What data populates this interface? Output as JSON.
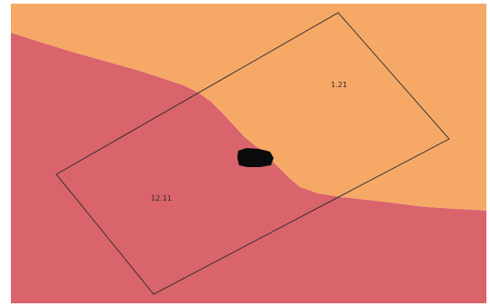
{
  "map": {
    "zones": [
      {
        "id": "zone-a",
        "label": "1.21",
        "color": "#f6a866"
      },
      {
        "id": "zone-b",
        "label": "12.11",
        "color": "#d9646c"
      }
    ],
    "outline_color": "#2a2a2a",
    "marker_color": "#0b0b0b"
  }
}
